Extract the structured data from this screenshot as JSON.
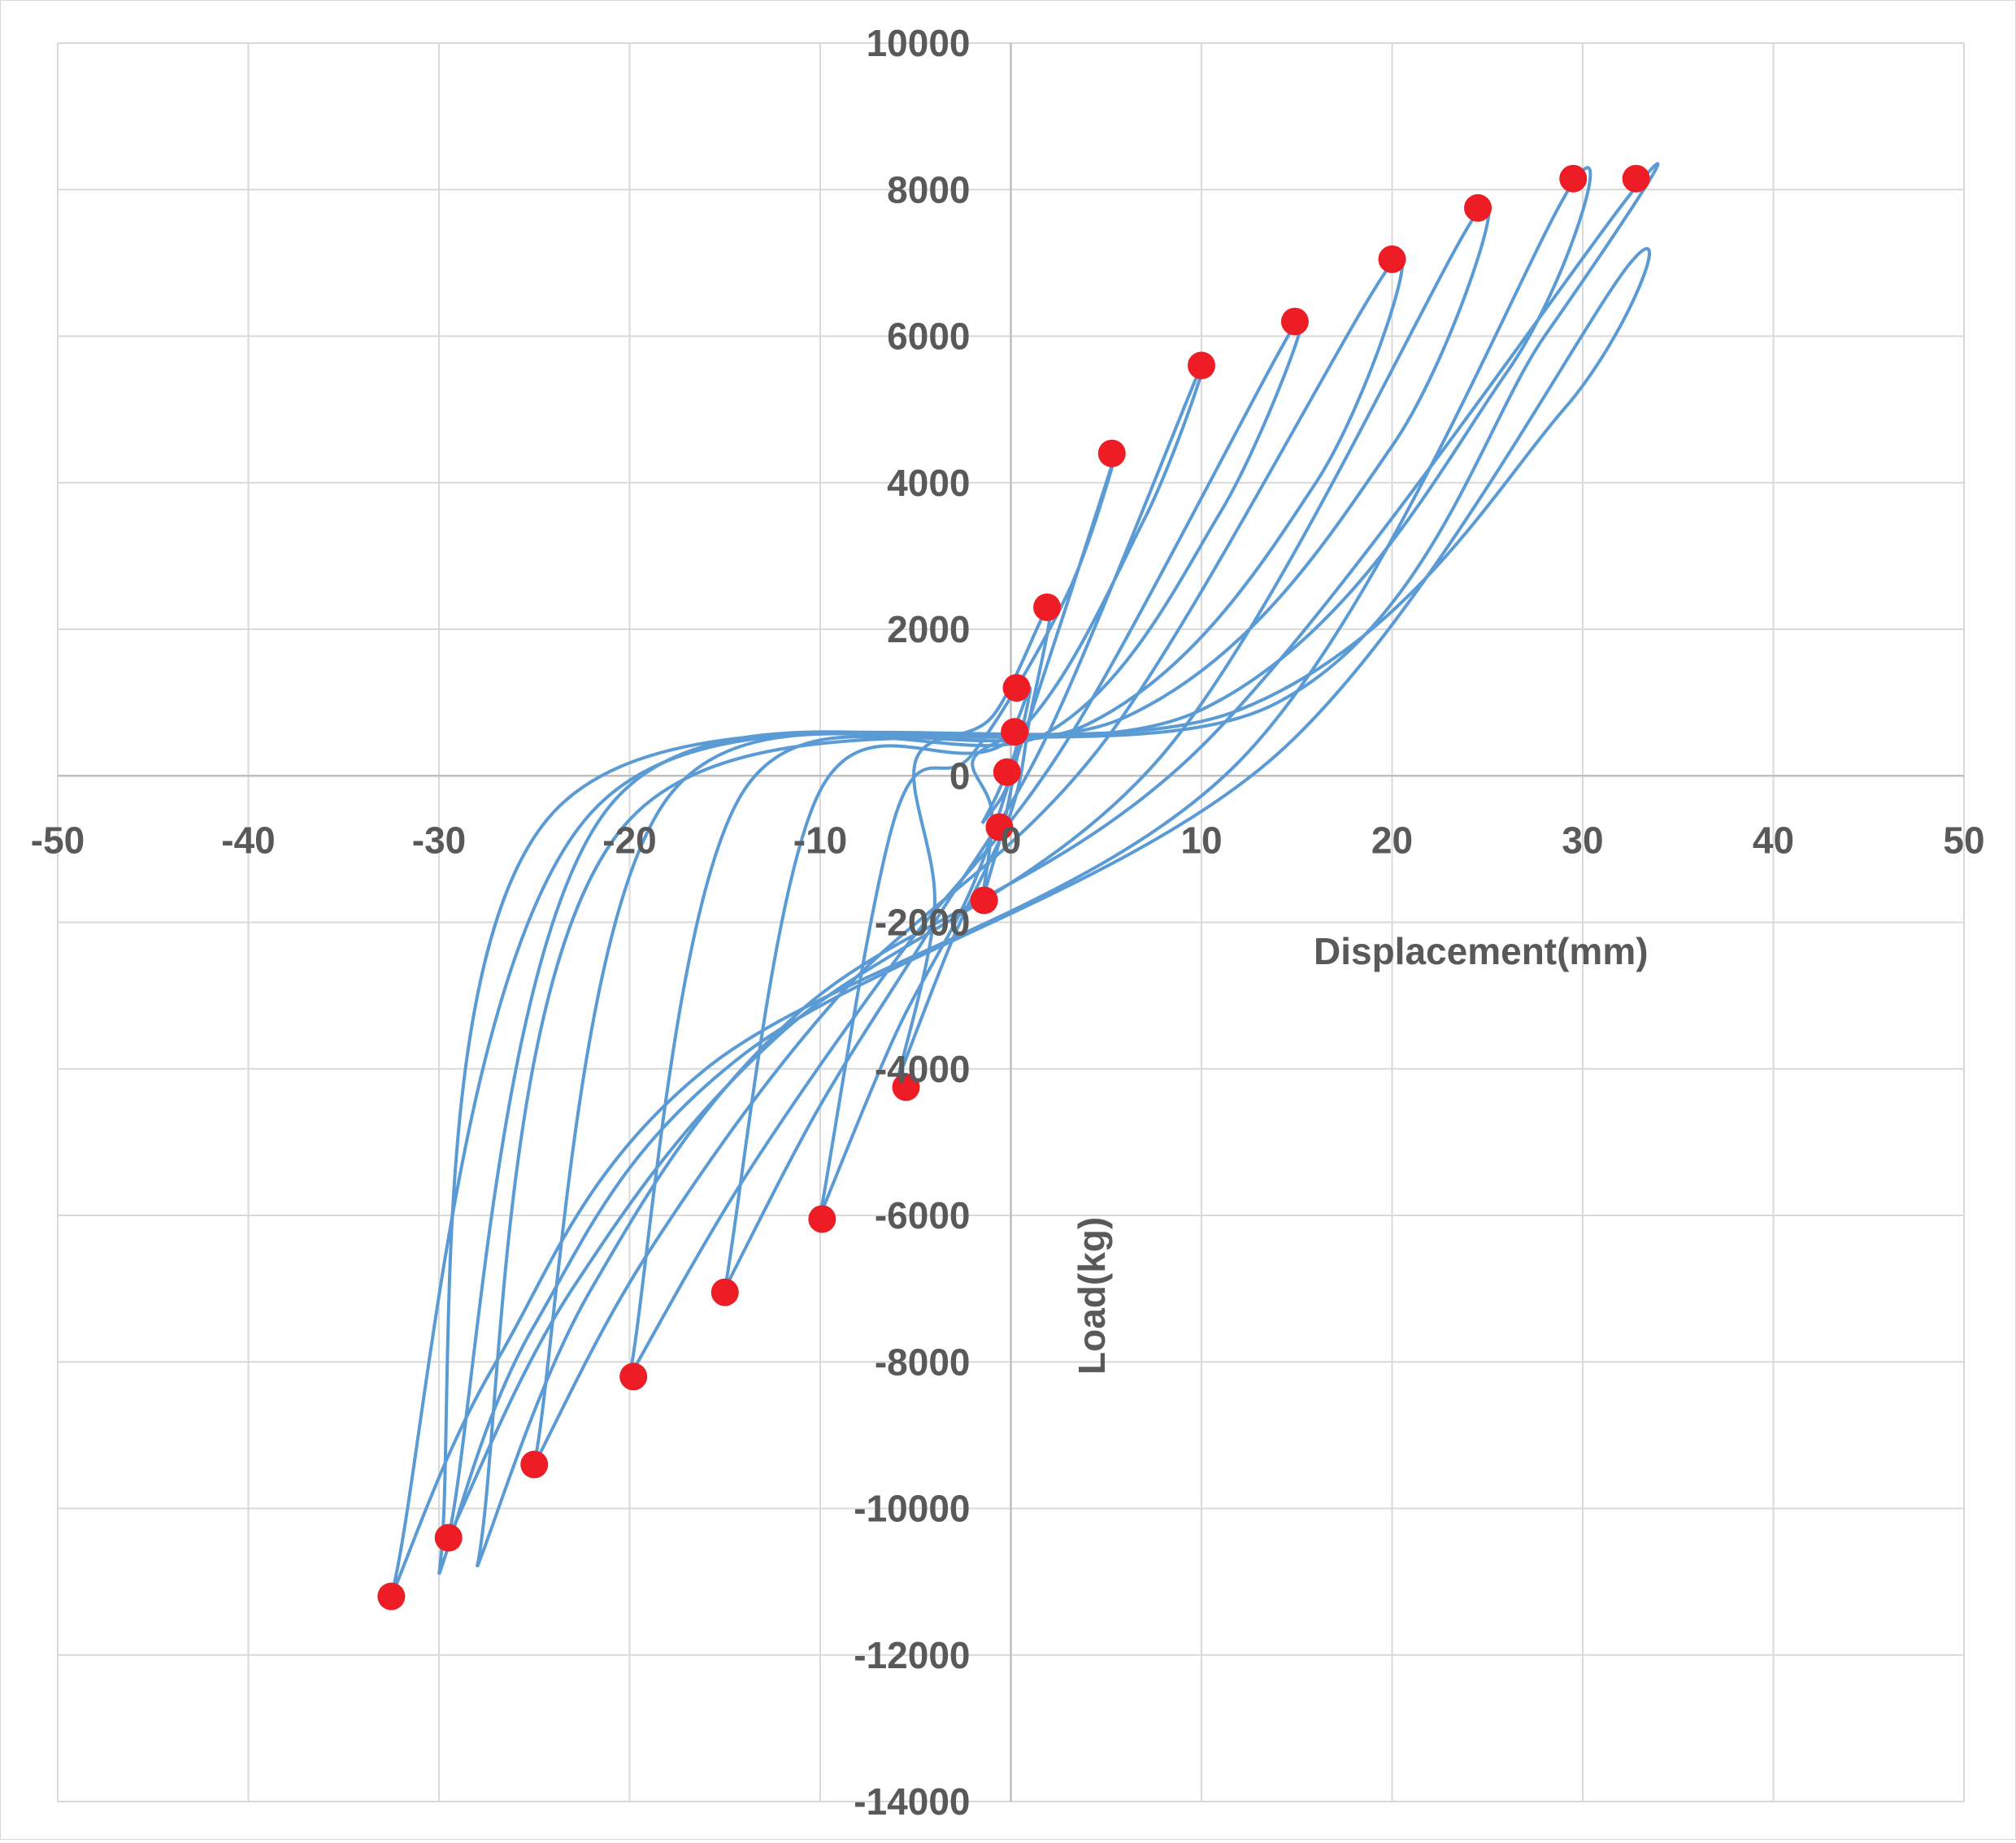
{
  "chart_data": {
    "type": "scatter",
    "title": "",
    "xlabel": "Displacement(mm)",
    "ylabel": "Load(kg)",
    "xlim": [
      -50,
      50
    ],
    "ylim": [
      -14000,
      10000
    ],
    "xticks": [
      -50,
      -40,
      -30,
      -20,
      -10,
      0,
      10,
      20,
      30,
      40,
      50
    ],
    "yticks": [
      10000,
      8000,
      6000,
      4000,
      2000,
      0,
      -2000,
      -4000,
      -6000,
      -8000,
      -10000,
      -12000,
      -14000
    ],
    "grid": true,
    "legend": "none",
    "series": [
      {
        "kind": "line",
        "color": "#5B9BD5",
        "loops": [
          [
            [
              -1.5,
              -650
            ],
            [
              -0.5,
              -300
            ],
            [
              0,
              0
            ],
            [
              0.3,
              300
            ],
            [
              0.5,
              650
            ],
            [
              0.2,
              300
            ],
            [
              -0.3,
              0
            ],
            [
              -0.8,
              -300
            ],
            [
              -1.5,
              -650
            ]
          ],
          [
            [
              -1.5,
              -1700
            ],
            [
              -0.5,
              -800
            ],
            [
              0,
              -200
            ],
            [
              0.5,
              500
            ],
            [
              1,
              1200
            ],
            [
              0,
              600
            ],
            [
              -2,
              200
            ],
            [
              -1,
              -500
            ],
            [
              -1.5,
              -1700
            ]
          ],
          [
            [
              -6,
              -4200
            ],
            [
              -3,
              -2200
            ],
            [
              0,
              -500
            ],
            [
              1,
              800
            ],
            [
              2,
              2300
            ],
            [
              -1,
              800
            ],
            [
              -5,
              200
            ],
            [
              -4,
              -1800
            ],
            [
              -6,
              -4200
            ]
          ],
          [
            [
              -10,
              -6000
            ],
            [
              -6,
              -3500
            ],
            [
              -2,
              -1500
            ],
            [
              1,
              800
            ],
            [
              5.5,
              4400
            ],
            [
              3,
              2500
            ],
            [
              -2,
              300
            ],
            [
              -6,
              -500
            ],
            [
              -10,
              -6000
            ]
          ],
          [
            [
              -15,
              -7000
            ],
            [
              -10,
              -4500
            ],
            [
              -4,
              -2000
            ],
            [
              2,
              600
            ],
            [
              10,
              5600
            ],
            [
              7,
              3500
            ],
            [
              0,
              500
            ],
            [
              -10,
              -200
            ],
            [
              -15,
              -7000
            ]
          ],
          [
            [
              -20,
              -8200
            ],
            [
              -14,
              -5500
            ],
            [
              -6,
              -2500
            ],
            [
              3,
              500
            ],
            [
              15,
              6200
            ],
            [
              11,
              3600
            ],
            [
              2,
              600
            ],
            [
              -14,
              -200
            ],
            [
              -20,
              -8200
            ]
          ],
          [
            [
              -25,
              -9400
            ],
            [
              -19,
              -6500
            ],
            [
              -9,
              -3000
            ],
            [
              5,
              500
            ],
            [
              20,
              7000
            ],
            [
              16,
              4000
            ],
            [
              4,
              700
            ],
            [
              -18,
              -300
            ],
            [
              -25,
              -9400
            ]
          ],
          [
            [
              -29.5,
              -10400
            ],
            [
              -23,
              -7000
            ],
            [
              -12,
              -3500
            ],
            [
              8,
              300
            ],
            [
              24.5,
              7700
            ],
            [
              20,
              4500
            ],
            [
              6,
              800
            ],
            [
              -21,
              -400
            ],
            [
              -29.5,
              -10400
            ]
          ],
          [
            [
              -32.5,
              -11200
            ],
            [
              -27,
              -8000
            ],
            [
              -16,
              -4000
            ],
            [
              12,
              200
            ],
            [
              29.5,
              8100
            ],
            [
              26,
              5500
            ],
            [
              10,
              900
            ],
            [
              -22,
              -500
            ],
            [
              -32.5,
              -11200
            ]
          ],
          [
            [
              -30,
              -10900
            ],
            [
              -25,
              -7500
            ],
            [
              -14,
              -3800
            ],
            [
              14,
              300
            ],
            [
              32.5,
              7000
            ],
            [
              29,
              5000
            ],
            [
              12,
              900
            ],
            [
              -24,
              -500
            ],
            [
              -30,
              -10900
            ]
          ],
          [
            [
              -28,
              -10800
            ],
            [
              -22,
              -7000
            ],
            [
              -11,
              -3200
            ],
            [
              10,
              400
            ],
            [
              33,
              8100
            ],
            [
              28,
              6000
            ],
            [
              14,
              1000
            ],
            [
              -20,
              -600
            ],
            [
              -28,
              -10800
            ]
          ]
        ]
      },
      {
        "kind": "scatter",
        "color": "#EE1C24",
        "points": [
          [
            -32.5,
            -11200
          ],
          [
            -29.5,
            -10400
          ],
          [
            -25,
            -9400
          ],
          [
            -19.8,
            -8200
          ],
          [
            -15,
            -7050
          ],
          [
            -9.9,
            -6050
          ],
          [
            -5.5,
            -4250
          ],
          [
            -1.4,
            -1700
          ],
          [
            -0.6,
            -700
          ],
          [
            -0.2,
            50
          ],
          [
            0.2,
            600
          ],
          [
            0.3,
            1200
          ],
          [
            1.9,
            2300
          ],
          [
            5.3,
            4400
          ],
          [
            10,
            5600
          ],
          [
            14.9,
            6200
          ],
          [
            20,
            7050
          ],
          [
            24.5,
            7750
          ],
          [
            29.5,
            8150
          ],
          [
            32.8,
            8150
          ]
        ]
      }
    ]
  }
}
